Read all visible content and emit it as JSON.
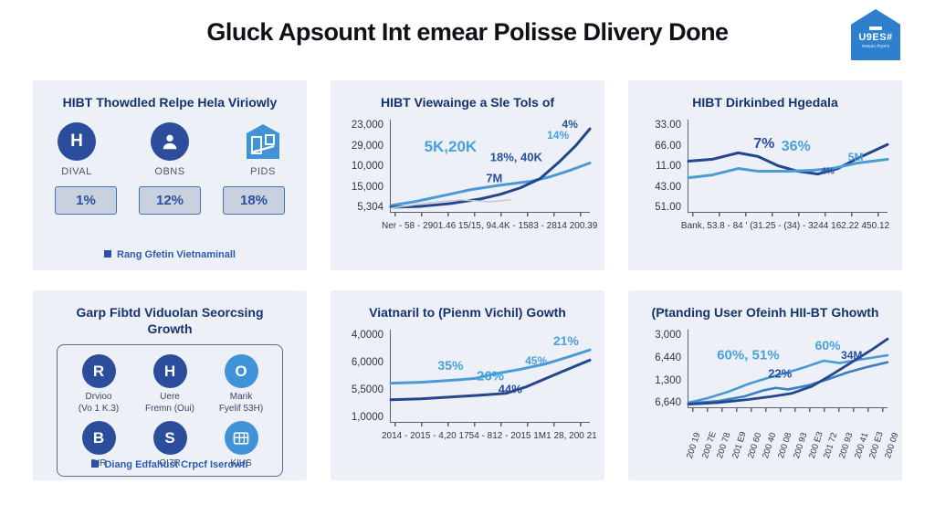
{
  "header": {
    "title": "Gluck Apsount Int emear Polisse Dlivery Done"
  },
  "logo": {
    "text": "U9ES#",
    "subtext": "reausu rhyem",
    "color": "#2e80cd"
  },
  "colors": {
    "panel_bg": "#edf0f6",
    "dark_line": "#24468e",
    "mid_line": "#3d7fc1",
    "light_line": "#4a9bd5",
    "annotation_light": "#4aa0da",
    "annotation_dark": "#2a4f9e",
    "title_navy": "#15336e",
    "footer_blue": "#2c5bb0"
  },
  "panels": {
    "p1": {
      "title": "HIBT Thowdled Relpe Hela Viriowly",
      "items": [
        {
          "icon": "h-circle-icon",
          "glyph": "H",
          "label": "DIVAL",
          "value": "1%"
        },
        {
          "icon": "person-circle-icon",
          "glyph": "person",
          "label": "OBNS",
          "value": "12%"
        },
        {
          "icon": "house-icon",
          "glyph": "house",
          "label": "PIDS",
          "value": "18%"
        }
      ],
      "footer": "Rang Gfetin Vietnaminall"
    },
    "p4": {
      "title": "Garp Fibtd Viduolan Seorcsing Growth",
      "items": [
        {
          "icon": "r-circle-icon",
          "glyph": "R",
          "label_line1": "Drvioo",
          "label_line2": "(Vo 1 K.3)"
        },
        {
          "icon": "h-circle-icon",
          "glyph": "H",
          "label_line1": "Uere",
          "label_line2": "Fremn (Oui)"
        },
        {
          "icon": "o-circle-icon",
          "glyph": "O",
          "label_line1": "Marik",
          "label_line2": "Fyelif 53H)"
        },
        {
          "icon": "b-circle-icon",
          "glyph": "B",
          "label_line1": "DIR",
          "label_line2": ""
        },
        {
          "icon": "s-circle-icon",
          "glyph": "S",
          "label_line1": "OI7R",
          "label_line2": ""
        },
        {
          "icon": "grid-circle-icon",
          "glyph": "grid",
          "label_line1": "KIUS",
          "label_line2": ""
        }
      ],
      "footer": "Diang Edfahust Crpcf Iserowti"
    }
  },
  "chart_data": [
    {
      "type": "line",
      "title": "HIBT Viewainge a Sle Tols of",
      "y_ticks": [
        "23,000",
        "29,000",
        "10,000",
        "15,000",
        "5,304"
      ],
      "x_axis_text": "Ner - 58  -  2901.46 15/15, 94.4K  -  1583 - 2814  200.39",
      "legend": "none",
      "grid": false,
      "series": [
        {
          "name": "series-light",
          "color": "#4a9bd5",
          "width": 3,
          "points": [
            [
              0,
              0.07
            ],
            [
              0.12,
              0.11
            ],
            [
              0.25,
              0.17
            ],
            [
              0.4,
              0.24
            ],
            [
              0.55,
              0.29
            ],
            [
              0.7,
              0.33
            ],
            [
              0.8,
              0.38
            ],
            [
              0.9,
              0.45
            ],
            [
              1,
              0.53
            ]
          ]
        },
        {
          "name": "series-dark",
          "color": "#24468e",
          "width": 3,
          "points": [
            [
              0,
              0.05
            ],
            [
              0.15,
              0.06
            ],
            [
              0.3,
              0.09
            ],
            [
              0.45,
              0.14
            ],
            [
              0.55,
              0.19
            ],
            [
              0.65,
              0.26
            ],
            [
              0.75,
              0.36
            ],
            [
              0.85,
              0.55
            ],
            [
              0.93,
              0.72
            ],
            [
              1,
              0.9
            ]
          ]
        },
        {
          "name": "series-gray",
          "color": "#c4c9d2",
          "width": 1.5,
          "points": [
            [
              0,
              0.04
            ],
            [
              0.2,
              0.1
            ],
            [
              0.35,
              0.13
            ],
            [
              0.5,
              0.11
            ],
            [
              0.6,
              0.13
            ]
          ]
        }
      ],
      "annotations": [
        {
          "text": "5K,20K",
          "x": 0.3,
          "y": 0.3,
          "color": "#4aa0da",
          "size": 17
        },
        {
          "text": "7M",
          "x": 0.52,
          "y": 0.63,
          "color": "#2a4f9e",
          "size": 13
        },
        {
          "text": "18%, 40K",
          "x": 0.63,
          "y": 0.4,
          "color": "#2a4f9e",
          "size": 13
        },
        {
          "text": "14%",
          "x": 0.84,
          "y": 0.17,
          "color": "#4aa0da",
          "size": 12
        },
        {
          "text": "4%",
          "x": 0.9,
          "y": 0.05,
          "color": "#2a4f9e",
          "size": 12
        }
      ]
    },
    {
      "type": "line",
      "title": "HIBT Dirkinbed Hgedala",
      "y_ticks": [
        "33.00",
        "66.00",
        "11.00",
        "43.00",
        "51.00"
      ],
      "x_axis_text": "Bank, 53.8 - 84 ' (31.25 - (34) - 3244 162.22 450.12",
      "legend": "none",
      "grid": false,
      "series": [
        {
          "name": "series-dark",
          "color": "#24468e",
          "width": 3,
          "points": [
            [
              0,
              0.55
            ],
            [
              0.12,
              0.57
            ],
            [
              0.25,
              0.64
            ],
            [
              0.35,
              0.6
            ],
            [
              0.45,
              0.5
            ],
            [
              0.55,
              0.44
            ],
            [
              0.65,
              0.41
            ],
            [
              0.75,
              0.47
            ],
            [
              0.85,
              0.58
            ],
            [
              1,
              0.73
            ]
          ]
        },
        {
          "name": "series-light",
          "color": "#4a9bd5",
          "width": 3,
          "points": [
            [
              0,
              0.37
            ],
            [
              0.12,
              0.4
            ],
            [
              0.25,
              0.47
            ],
            [
              0.35,
              0.44
            ],
            [
              0.5,
              0.44
            ],
            [
              0.62,
              0.45
            ],
            [
              0.72,
              0.47
            ],
            [
              0.85,
              0.53
            ],
            [
              1,
              0.57
            ]
          ]
        }
      ],
      "annotations": [
        {
          "text": "7%",
          "x": 0.38,
          "y": 0.27,
          "color": "#2a4f9e",
          "size": 16
        },
        {
          "text": "36%",
          "x": 0.54,
          "y": 0.3,
          "color": "#4aa0da",
          "size": 16
        },
        {
          "text": "4%",
          "x": 0.7,
          "y": 0.56,
          "color": "#2a4f9e",
          "size": 10
        },
        {
          "text": "5M",
          "x": 0.84,
          "y": 0.4,
          "color": "#4aa0da",
          "size": 12
        }
      ]
    },
    {
      "type": "line",
      "title": "Viatnaril to (Pienm Vichil) Gowth",
      "y_ticks": [
        "4,0000",
        "6,0000",
        "5,5000",
        "1,0000"
      ],
      "x_axis_text": "2014 - 2015 - 4,20 1754 - 812 - 2015 1M1 28, 200 21",
      "legend": "none",
      "grid": false,
      "series": [
        {
          "name": "series-light",
          "color": "#4a9bd5",
          "width": 3,
          "points": [
            [
              0,
              0.42
            ],
            [
              0.15,
              0.43
            ],
            [
              0.3,
              0.45
            ],
            [
              0.42,
              0.47
            ],
            [
              0.52,
              0.52
            ],
            [
              0.65,
              0.57
            ],
            [
              0.78,
              0.63
            ],
            [
              0.9,
              0.71
            ],
            [
              1,
              0.78
            ]
          ]
        },
        {
          "name": "series-dark",
          "color": "#24468e",
          "width": 3,
          "points": [
            [
              0,
              0.24
            ],
            [
              0.15,
              0.25
            ],
            [
              0.3,
              0.27
            ],
            [
              0.45,
              0.29
            ],
            [
              0.58,
              0.31
            ],
            [
              0.68,
              0.38
            ],
            [
              0.8,
              0.49
            ],
            [
              0.9,
              0.58
            ],
            [
              1,
              0.67
            ]
          ]
        }
      ],
      "annotations": [
        {
          "text": "35%",
          "x": 0.3,
          "y": 0.38,
          "color": "#4aa0da",
          "size": 14
        },
        {
          "text": "26%",
          "x": 0.5,
          "y": 0.5,
          "color": "#4aa0da",
          "size": 15
        },
        {
          "text": "44%",
          "x": 0.6,
          "y": 0.64,
          "color": "#2a4f9e",
          "size": 13
        },
        {
          "text": "45%",
          "x": 0.73,
          "y": 0.33,
          "color": "#4aa0da",
          "size": 12
        },
        {
          "text": "21%",
          "x": 0.88,
          "y": 0.12,
          "color": "#4aa0da",
          "size": 14
        }
      ]
    },
    {
      "type": "line",
      "title": "(Ptanding User Ofeinh HII-BT Ghowth",
      "y_ticks": [
        "3,000",
        "6,440",
        "1,300",
        "6,640"
      ],
      "x_ticks": [
        "200 19",
        "200 7E",
        "200 78",
        "201 E9",
        "200 60",
        "200 40",
        "200 08",
        "200 93",
        "200 E3",
        "201 72",
        "200 93",
        "200 41",
        "200 E3",
        "200 09"
      ],
      "x_ticks_rotated": true,
      "legend": "none",
      "grid": false,
      "series": [
        {
          "name": "series-light",
          "color": "#4a9bd5",
          "width": 2.6,
          "points": [
            [
              0,
              0.06
            ],
            [
              0.1,
              0.12
            ],
            [
              0.2,
              0.2
            ],
            [
              0.3,
              0.3
            ],
            [
              0.4,
              0.38
            ],
            [
              0.5,
              0.45
            ],
            [
              0.6,
              0.53
            ],
            [
              0.68,
              0.6
            ],
            [
              0.76,
              0.57
            ],
            [
              0.85,
              0.61
            ],
            [
              1,
              0.67
            ]
          ]
        },
        {
          "name": "series-mid",
          "color": "#3d7fc1",
          "width": 2.6,
          "points": [
            [
              0,
              0.05
            ],
            [
              0.15,
              0.08
            ],
            [
              0.28,
              0.14
            ],
            [
              0.38,
              0.22
            ],
            [
              0.44,
              0.25
            ],
            [
              0.5,
              0.23
            ],
            [
              0.6,
              0.28
            ],
            [
              0.7,
              0.36
            ],
            [
              0.8,
              0.45
            ],
            [
              0.9,
              0.52
            ],
            [
              1,
              0.58
            ]
          ]
        },
        {
          "name": "series-dark",
          "color": "#24468e",
          "width": 2.8,
          "points": [
            [
              0,
              0.04
            ],
            [
              0.15,
              0.06
            ],
            [
              0.3,
              0.1
            ],
            [
              0.42,
              0.14
            ],
            [
              0.52,
              0.18
            ],
            [
              0.62,
              0.27
            ],
            [
              0.72,
              0.42
            ],
            [
              0.82,
              0.58
            ],
            [
              0.92,
              0.74
            ],
            [
              1,
              0.88
            ]
          ]
        }
      ],
      "annotations": [
        {
          "text": "60%, 51%",
          "x": 0.3,
          "y": 0.33,
          "color": "#4aa0da",
          "size": 15
        },
        {
          "text": "22%",
          "x": 0.46,
          "y": 0.56,
          "color": "#2a4f9e",
          "size": 13
        },
        {
          "text": "60%",
          "x": 0.7,
          "y": 0.2,
          "color": "#4aa0da",
          "size": 14
        },
        {
          "text": "34M",
          "x": 0.82,
          "y": 0.33,
          "color": "#2a4f9e",
          "size": 12
        }
      ]
    }
  ]
}
